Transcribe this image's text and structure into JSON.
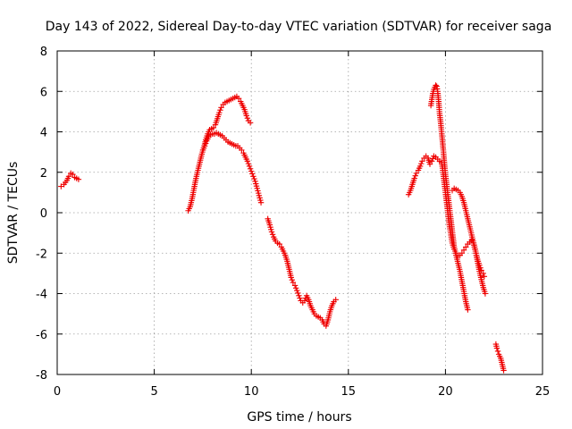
{
  "chart_data": {
    "type": "scatter",
    "title": "Day 143 of 2022, Sidereal Day-to-day VTEC variation (SDTVAR) for receiver saga",
    "xlabel": "GPS time / hours",
    "ylabel": "SDTVAR / TECUs",
    "xlim": [
      0,
      25
    ],
    "ylim": [
      -8,
      8
    ],
    "xticks": [
      0,
      5,
      10,
      15,
      20,
      25
    ],
    "yticks": [
      -8,
      -6,
      -4,
      -2,
      0,
      2,
      4,
      6,
      8
    ],
    "xtick_labels": [
      "0",
      "5",
      "10",
      "15",
      "20",
      "25"
    ],
    "ytick_labels": [
      "-8",
      "-6",
      "-4",
      "-2",
      "0",
      "2",
      "4",
      "6",
      "8"
    ],
    "grid": true,
    "marker": "+",
    "marker_color": "#ee0000",
    "series": [
      {
        "segments": [
          [
            [
              0.2,
              1.3
            ],
            [
              0.35,
              1.4
            ],
            [
              0.5,
              1.6
            ],
            [
              0.6,
              1.8
            ],
            [
              0.7,
              1.95
            ],
            [
              0.8,
              1.9
            ],
            [
              0.9,
              1.75
            ],
            [
              1.0,
              1.7
            ],
            [
              1.1,
              1.65
            ]
          ],
          [
            [
              6.75,
              0.1
            ],
            [
              6.85,
              0.3
            ],
            [
              6.95,
              0.7
            ],
            [
              7.05,
              1.2
            ],
            [
              7.15,
              1.7
            ],
            [
              7.25,
              2.1
            ],
            [
              7.35,
              2.5
            ],
            [
              7.45,
              2.9
            ],
            [
              7.55,
              3.2
            ],
            [
              7.65,
              3.6
            ],
            [
              7.75,
              3.9
            ],
            [
              7.85,
              4.1
            ],
            [
              7.95,
              4.15
            ],
            [
              8.05,
              4.2
            ],
            [
              8.15,
              4.35
            ],
            [
              8.25,
              4.65
            ],
            [
              8.35,
              4.95
            ],
            [
              8.45,
              5.2
            ],
            [
              8.55,
              5.35
            ],
            [
              8.65,
              5.45
            ],
            [
              8.75,
              5.5
            ],
            [
              8.85,
              5.55
            ],
            [
              8.95,
              5.6
            ],
            [
              9.05,
              5.65
            ],
            [
              9.15,
              5.7
            ],
            [
              9.25,
              5.75
            ],
            [
              9.35,
              5.65
            ],
            [
              9.45,
              5.5
            ],
            [
              9.55,
              5.3
            ],
            [
              9.65,
              5.1
            ],
            [
              9.75,
              4.8
            ],
            [
              9.85,
              4.55
            ],
            [
              9.95,
              4.45
            ]
          ],
          [
            [
              7.5,
              3.1
            ],
            [
              7.6,
              3.3
            ],
            [
              7.7,
              3.55
            ],
            [
              7.8,
              3.75
            ],
            [
              7.9,
              3.85
            ],
            [
              8.0,
              3.9
            ],
            [
              8.1,
              3.9
            ],
            [
              8.2,
              3.95
            ],
            [
              8.3,
              3.9
            ],
            [
              8.4,
              3.85
            ],
            [
              8.5,
              3.8
            ],
            [
              8.6,
              3.7
            ],
            [
              8.7,
              3.6
            ],
            [
              8.8,
              3.5
            ],
            [
              8.9,
              3.45
            ],
            [
              9.0,
              3.4
            ],
            [
              9.1,
              3.35
            ],
            [
              9.2,
              3.3
            ],
            [
              9.3,
              3.3
            ],
            [
              9.4,
              3.2
            ],
            [
              9.5,
              3.1
            ],
            [
              9.6,
              2.95
            ],
            [
              9.7,
              2.75
            ],
            [
              9.8,
              2.55
            ],
            [
              9.9,
              2.3
            ],
            [
              10.0,
              2.05
            ],
            [
              10.1,
              1.8
            ],
            [
              10.2,
              1.55
            ],
            [
              10.3,
              1.2
            ],
            [
              10.4,
              0.85
            ],
            [
              10.5,
              0.5
            ]
          ],
          [
            [
              10.85,
              -0.3
            ],
            [
              10.95,
              -0.6
            ],
            [
              11.05,
              -0.95
            ],
            [
              11.15,
              -1.2
            ],
            [
              11.25,
              -1.4
            ],
            [
              11.35,
              -1.5
            ],
            [
              11.45,
              -1.55
            ],
            [
              11.55,
              -1.7
            ],
            [
              11.65,
              -1.9
            ],
            [
              11.75,
              -2.1
            ],
            [
              11.85,
              -2.4
            ],
            [
              11.95,
              -2.8
            ],
            [
              12.05,
              -3.2
            ],
            [
              12.15,
              -3.45
            ],
            [
              12.25,
              -3.6
            ],
            [
              12.35,
              -3.85
            ],
            [
              12.45,
              -4.1
            ],
            [
              12.55,
              -4.35
            ],
            [
              12.65,
              -4.45
            ],
            [
              12.75,
              -4.35
            ],
            [
              12.85,
              -4.1
            ],
            [
              12.95,
              -4.3
            ],
            [
              13.05,
              -4.6
            ],
            [
              13.15,
              -4.8
            ],
            [
              13.25,
              -5.0
            ],
            [
              13.35,
              -5.1
            ],
            [
              13.45,
              -5.15
            ],
            [
              13.55,
              -5.2
            ],
            [
              13.65,
              -5.3
            ],
            [
              13.75,
              -5.5
            ],
            [
              13.85,
              -5.6
            ],
            [
              13.95,
              -5.3
            ],
            [
              14.05,
              -4.9
            ],
            [
              14.15,
              -4.6
            ],
            [
              14.25,
              -4.4
            ],
            [
              14.35,
              -4.3
            ]
          ],
          [
            [
              18.1,
              0.9
            ],
            [
              18.2,
              1.1
            ],
            [
              18.3,
              1.4
            ],
            [
              18.4,
              1.7
            ],
            [
              18.5,
              1.95
            ],
            [
              18.6,
              2.1
            ],
            [
              18.7,
              2.3
            ],
            [
              18.8,
              2.55
            ],
            [
              18.9,
              2.7
            ],
            [
              19.0,
              2.8
            ],
            [
              19.1,
              2.7
            ],
            [
              19.2,
              2.4
            ],
            [
              19.3,
              2.55
            ],
            [
              19.4,
              2.8
            ],
            [
              19.5,
              2.75
            ],
            [
              19.6,
              2.65
            ],
            [
              19.7,
              2.55
            ],
            [
              19.8,
              2.5
            ],
            [
              19.85,
              2.2
            ],
            [
              19.9,
              1.8
            ],
            [
              19.95,
              1.4
            ],
            [
              20.0,
              1.0
            ],
            [
              20.05,
              0.6
            ],
            [
              20.1,
              0.2
            ],
            [
              20.15,
              -0.2
            ],
            [
              20.2,
              -0.6
            ],
            [
              20.25,
              -0.9
            ],
            [
              20.3,
              -1.2
            ],
            [
              20.35,
              -1.5
            ],
            [
              20.45,
              -1.8
            ],
            [
              20.55,
              -2.0
            ],
            [
              20.65,
              -2.1
            ],
            [
              20.75,
              -2.1
            ],
            [
              20.85,
              -2.0
            ],
            [
              20.95,
              -1.85
            ],
            [
              21.05,
              -1.7
            ],
            [
              21.15,
              -1.55
            ],
            [
              21.25,
              -1.45
            ],
            [
              21.35,
              -1.35
            ],
            [
              21.45,
              -1.5
            ],
            [
              21.55,
              -1.9
            ],
            [
              21.65,
              -2.3
            ],
            [
              21.75,
              -2.6
            ],
            [
              21.85,
              -2.85
            ],
            [
              21.95,
              -3.0
            ],
            [
              22.0,
              -3.15
            ]
          ],
          [
            [
              19.25,
              5.3
            ],
            [
              19.3,
              5.6
            ],
            [
              19.35,
              5.9
            ],
            [
              19.4,
              6.1
            ],
            [
              19.45,
              6.2
            ],
            [
              19.5,
              6.3
            ],
            [
              19.55,
              6.25
            ],
            [
              19.6,
              6.0
            ],
            [
              19.65,
              5.5
            ],
            [
              19.7,
              4.9
            ],
            [
              19.75,
              4.5
            ],
            [
              19.8,
              4.0
            ],
            [
              19.85,
              3.5
            ],
            [
              19.9,
              3.0
            ],
            [
              19.95,
              2.4
            ],
            [
              20.0,
              1.9
            ],
            [
              20.05,
              1.5
            ],
            [
              20.1,
              1.1
            ],
            [
              20.15,
              0.7
            ],
            [
              20.2,
              0.3
            ],
            [
              20.25,
              -0.1
            ],
            [
              20.3,
              -0.5
            ],
            [
              20.35,
              -0.9
            ],
            [
              20.4,
              -1.3
            ],
            [
              20.45,
              -1.7
            ],
            [
              20.55,
              -2.1
            ],
            [
              20.65,
              -2.5
            ],
            [
              20.75,
              -2.9
            ],
            [
              20.85,
              -3.4
            ],
            [
              20.95,
              -3.9
            ],
            [
              21.05,
              -4.4
            ],
            [
              21.15,
              -4.8
            ]
          ],
          [
            [
              20.35,
              1.1
            ],
            [
              20.45,
              1.2
            ],
            [
              20.55,
              1.15
            ],
            [
              20.65,
              1.1
            ],
            [
              20.75,
              1.0
            ],
            [
              20.85,
              0.8
            ],
            [
              20.95,
              0.5
            ],
            [
              21.05,
              0.1
            ],
            [
              21.15,
              -0.3
            ],
            [
              21.25,
              -0.7
            ],
            [
              21.35,
              -1.1
            ],
            [
              21.45,
              -1.5
            ],
            [
              21.55,
              -1.9
            ],
            [
              21.65,
              -2.4
            ],
            [
              21.75,
              -2.9
            ],
            [
              21.85,
              -3.3
            ],
            [
              21.95,
              -3.7
            ],
            [
              22.05,
              -4.0
            ]
          ],
          [
            [
              22.6,
              -6.5
            ],
            [
              22.65,
              -6.7
            ],
            [
              22.7,
              -6.85
            ],
            [
              22.75,
              -7.0
            ],
            [
              22.8,
              -7.1
            ],
            [
              22.85,
              -7.2
            ],
            [
              22.9,
              -7.4
            ],
            [
              22.95,
              -7.6
            ],
            [
              23.0,
              -7.8
            ]
          ]
        ]
      }
    ]
  }
}
